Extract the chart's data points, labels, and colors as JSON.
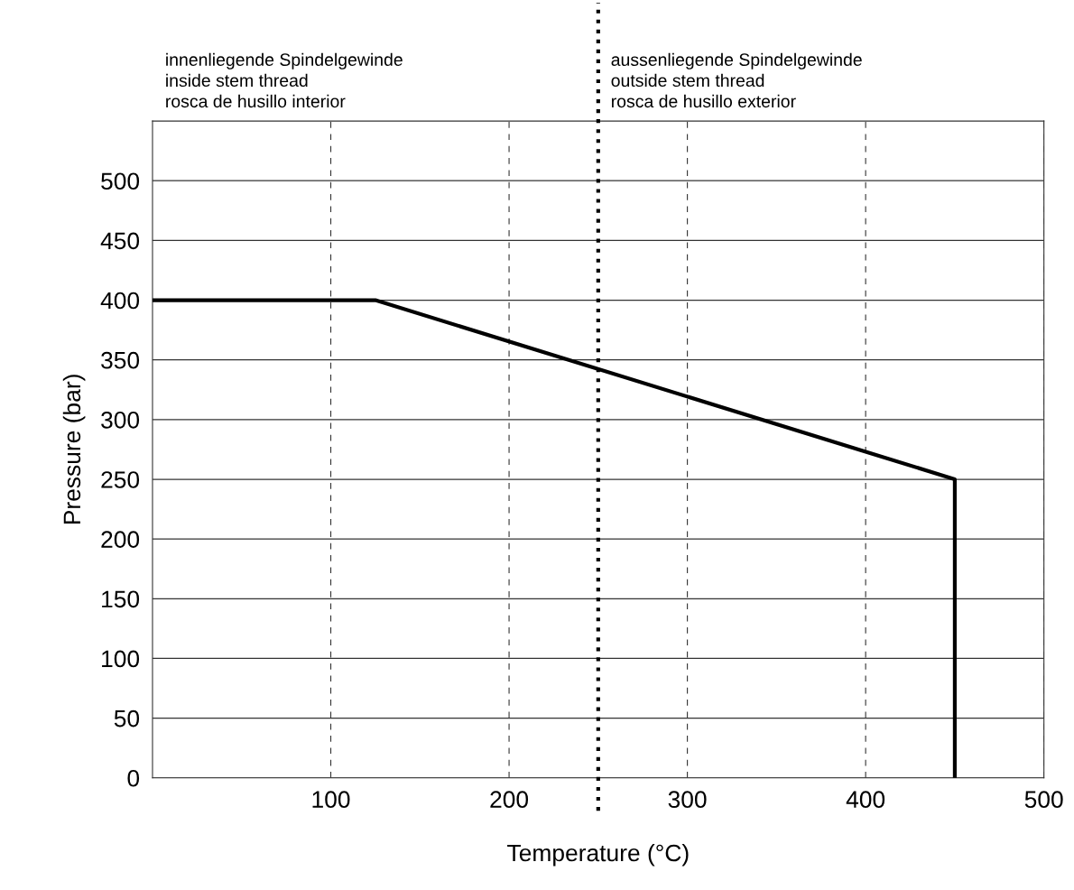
{
  "chart_data": {
    "type": "line",
    "xlabel": "Temperature (°C)",
    "ylabel": "Pressure (bar)",
    "series": [
      {
        "color": "#000000",
        "x": [
          0,
          125,
          450,
          450
        ],
        "values": [
          400,
          400,
          250,
          0
        ]
      }
    ],
    "xlim": [
      0,
      500
    ],
    "xticks": [
      100,
      200,
      300,
      400,
      500
    ],
    "ylim": [
      0,
      550
    ],
    "yticks": [
      0,
      50,
      100,
      150,
      200,
      250,
      300,
      350,
      400,
      450,
      500
    ],
    "grid": true,
    "marker": "none",
    "line_style": "solid",
    "ref_lines": [
      {
        "axis": "x",
        "value": 250,
        "color": "#000000",
        "line_style": "dotted"
      }
    ],
    "annotations": [
      "innenliegende Spindelgewinde\ninside stem thread\nrosca de husillo interior",
      "aussenliegende Spindelgewinde\noutside stem thread\nrosca de husillo exterior"
    ]
  }
}
